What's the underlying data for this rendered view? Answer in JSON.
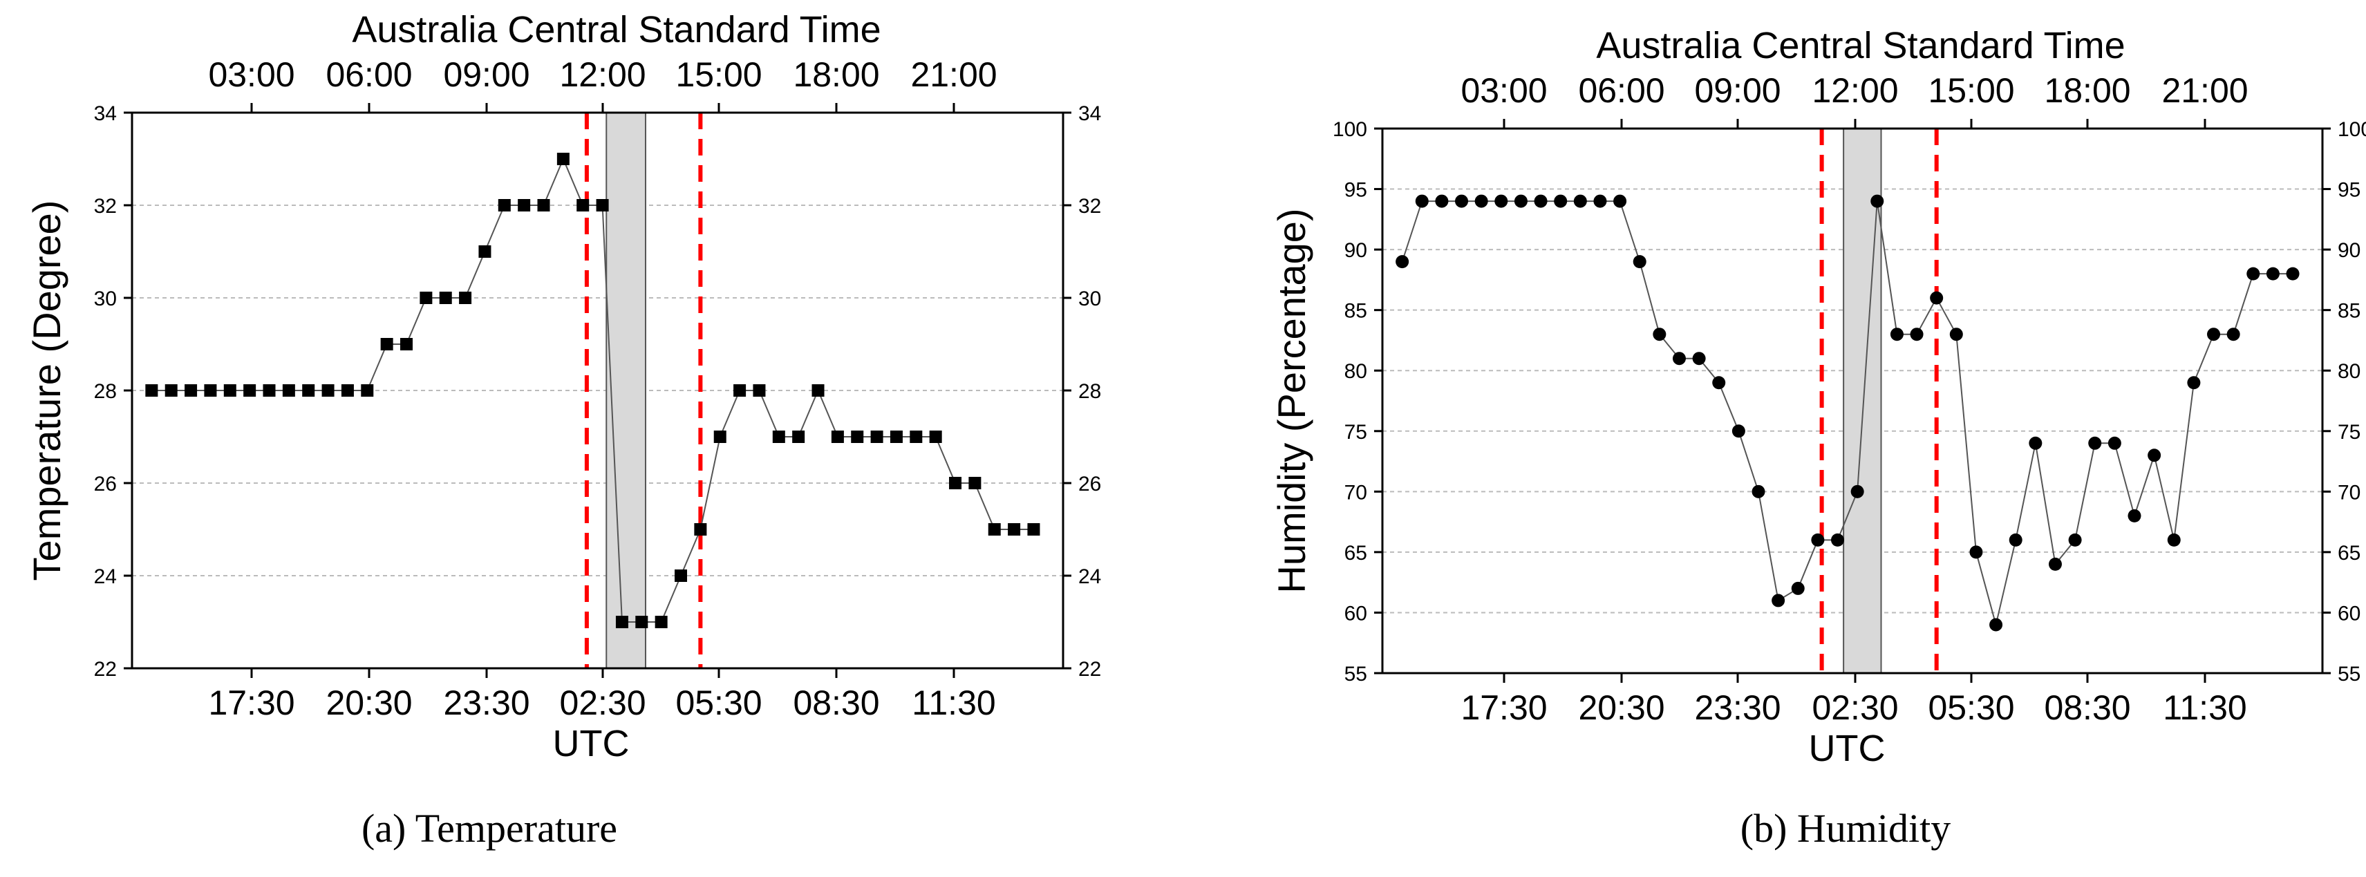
{
  "chart_data": [
    {
      "type": "line",
      "caption": "(a) Temperature",
      "top_axis": {
        "title": "Australia Central Standard Time",
        "ticks": [
          "03:00",
          "06:00",
          "09:00",
          "12:00",
          "15:00",
          "18:00",
          "21:00"
        ]
      },
      "bottom_axis": {
        "title": "UTC",
        "ticks": [
          "17:30",
          "20:30",
          "23:30",
          "02:30",
          "05:30",
          "08:30",
          "11:30"
        ]
      },
      "ylabel": "Temperature (Degree)",
      "ylim": [
        22,
        34
      ],
      "yticks": [
        22,
        24,
        26,
        28,
        30,
        32,
        34
      ],
      "marker": "square",
      "x": [
        0,
        1,
        2,
        3,
        4,
        5,
        6,
        7,
        8,
        9,
        10,
        11,
        12,
        13,
        14,
        15,
        16,
        17,
        18,
        19,
        20,
        21,
        22,
        23,
        24,
        25,
        26,
        27,
        28,
        29,
        30,
        31,
        32,
        33,
        34,
        35,
        36,
        37,
        38,
        39,
        40,
        41,
        42,
        43,
        44,
        45,
        46
      ],
      "values": [
        28,
        28,
        28,
        28,
        28,
        28,
        28,
        28,
        28,
        28,
        28,
        28,
        29,
        29,
        30,
        30,
        30,
        31,
        32,
        32,
        32,
        33,
        32,
        32,
        23,
        23,
        23,
        24,
        25,
        27,
        28,
        28,
        27,
        27,
        28,
        27,
        27,
        27,
        27,
        27,
        27,
        26,
        26,
        25,
        25,
        25,
        null
      ],
      "shaded_band": [
        23.2,
        25.2
      ],
      "event_lines": [
        22.2,
        28.0
      ],
      "grid": "horizontal dashed",
      "colors": {
        "line": "#555555",
        "marker": "#000000",
        "event_line": "#ff0000",
        "band": "#d9d9d9",
        "grid": "#bbbbbb"
      }
    },
    {
      "type": "line",
      "caption": "(b) Humidity",
      "top_axis": {
        "title": "Australia Central Standard Time",
        "ticks": [
          "03:00",
          "06:00",
          "09:00",
          "12:00",
          "15:00",
          "18:00",
          "21:00"
        ]
      },
      "bottom_axis": {
        "title": "UTC",
        "ticks": [
          "17:30",
          "20:30",
          "23:30",
          "02:30",
          "05:30",
          "08:30",
          "11:30"
        ]
      },
      "ylabel": "Humidity (Percentage)",
      "ylim": [
        55,
        100
      ],
      "yticks": [
        55,
        60,
        65,
        70,
        75,
        80,
        85,
        90,
        95,
        100
      ],
      "marker": "circle",
      "x": [
        0,
        1,
        2,
        3,
        4,
        5,
        6,
        7,
        8,
        9,
        10,
        11,
        12,
        13,
        14,
        15,
        16,
        17,
        18,
        19,
        20,
        21,
        22,
        23,
        24,
        25,
        26,
        27,
        28,
        29,
        30,
        31,
        32,
        33,
        34,
        35,
        36,
        37,
        38,
        39,
        40,
        41,
        42,
        43,
        44,
        45,
        46
      ],
      "values": [
        89,
        94,
        94,
        94,
        94,
        94,
        94,
        94,
        94,
        94,
        94,
        94,
        89,
        83,
        81,
        81,
        79,
        75,
        70,
        61,
        62,
        66,
        66,
        70,
        94,
        83,
        83,
        86,
        83,
        65,
        59,
        66,
        74,
        64,
        66,
        74,
        74,
        68,
        73,
        66,
        79,
        83,
        83,
        88,
        88,
        88,
        null
      ],
      "shaded_band": [
        22.3,
        24.2
      ],
      "event_lines": [
        21.2,
        27.0
      ],
      "grid": "horizontal dashed",
      "colors": {
        "line": "#555555",
        "marker": "#000000",
        "event_line": "#ff0000",
        "band": "#d9d9d9",
        "grid": "#bbbbbb"
      }
    }
  ]
}
